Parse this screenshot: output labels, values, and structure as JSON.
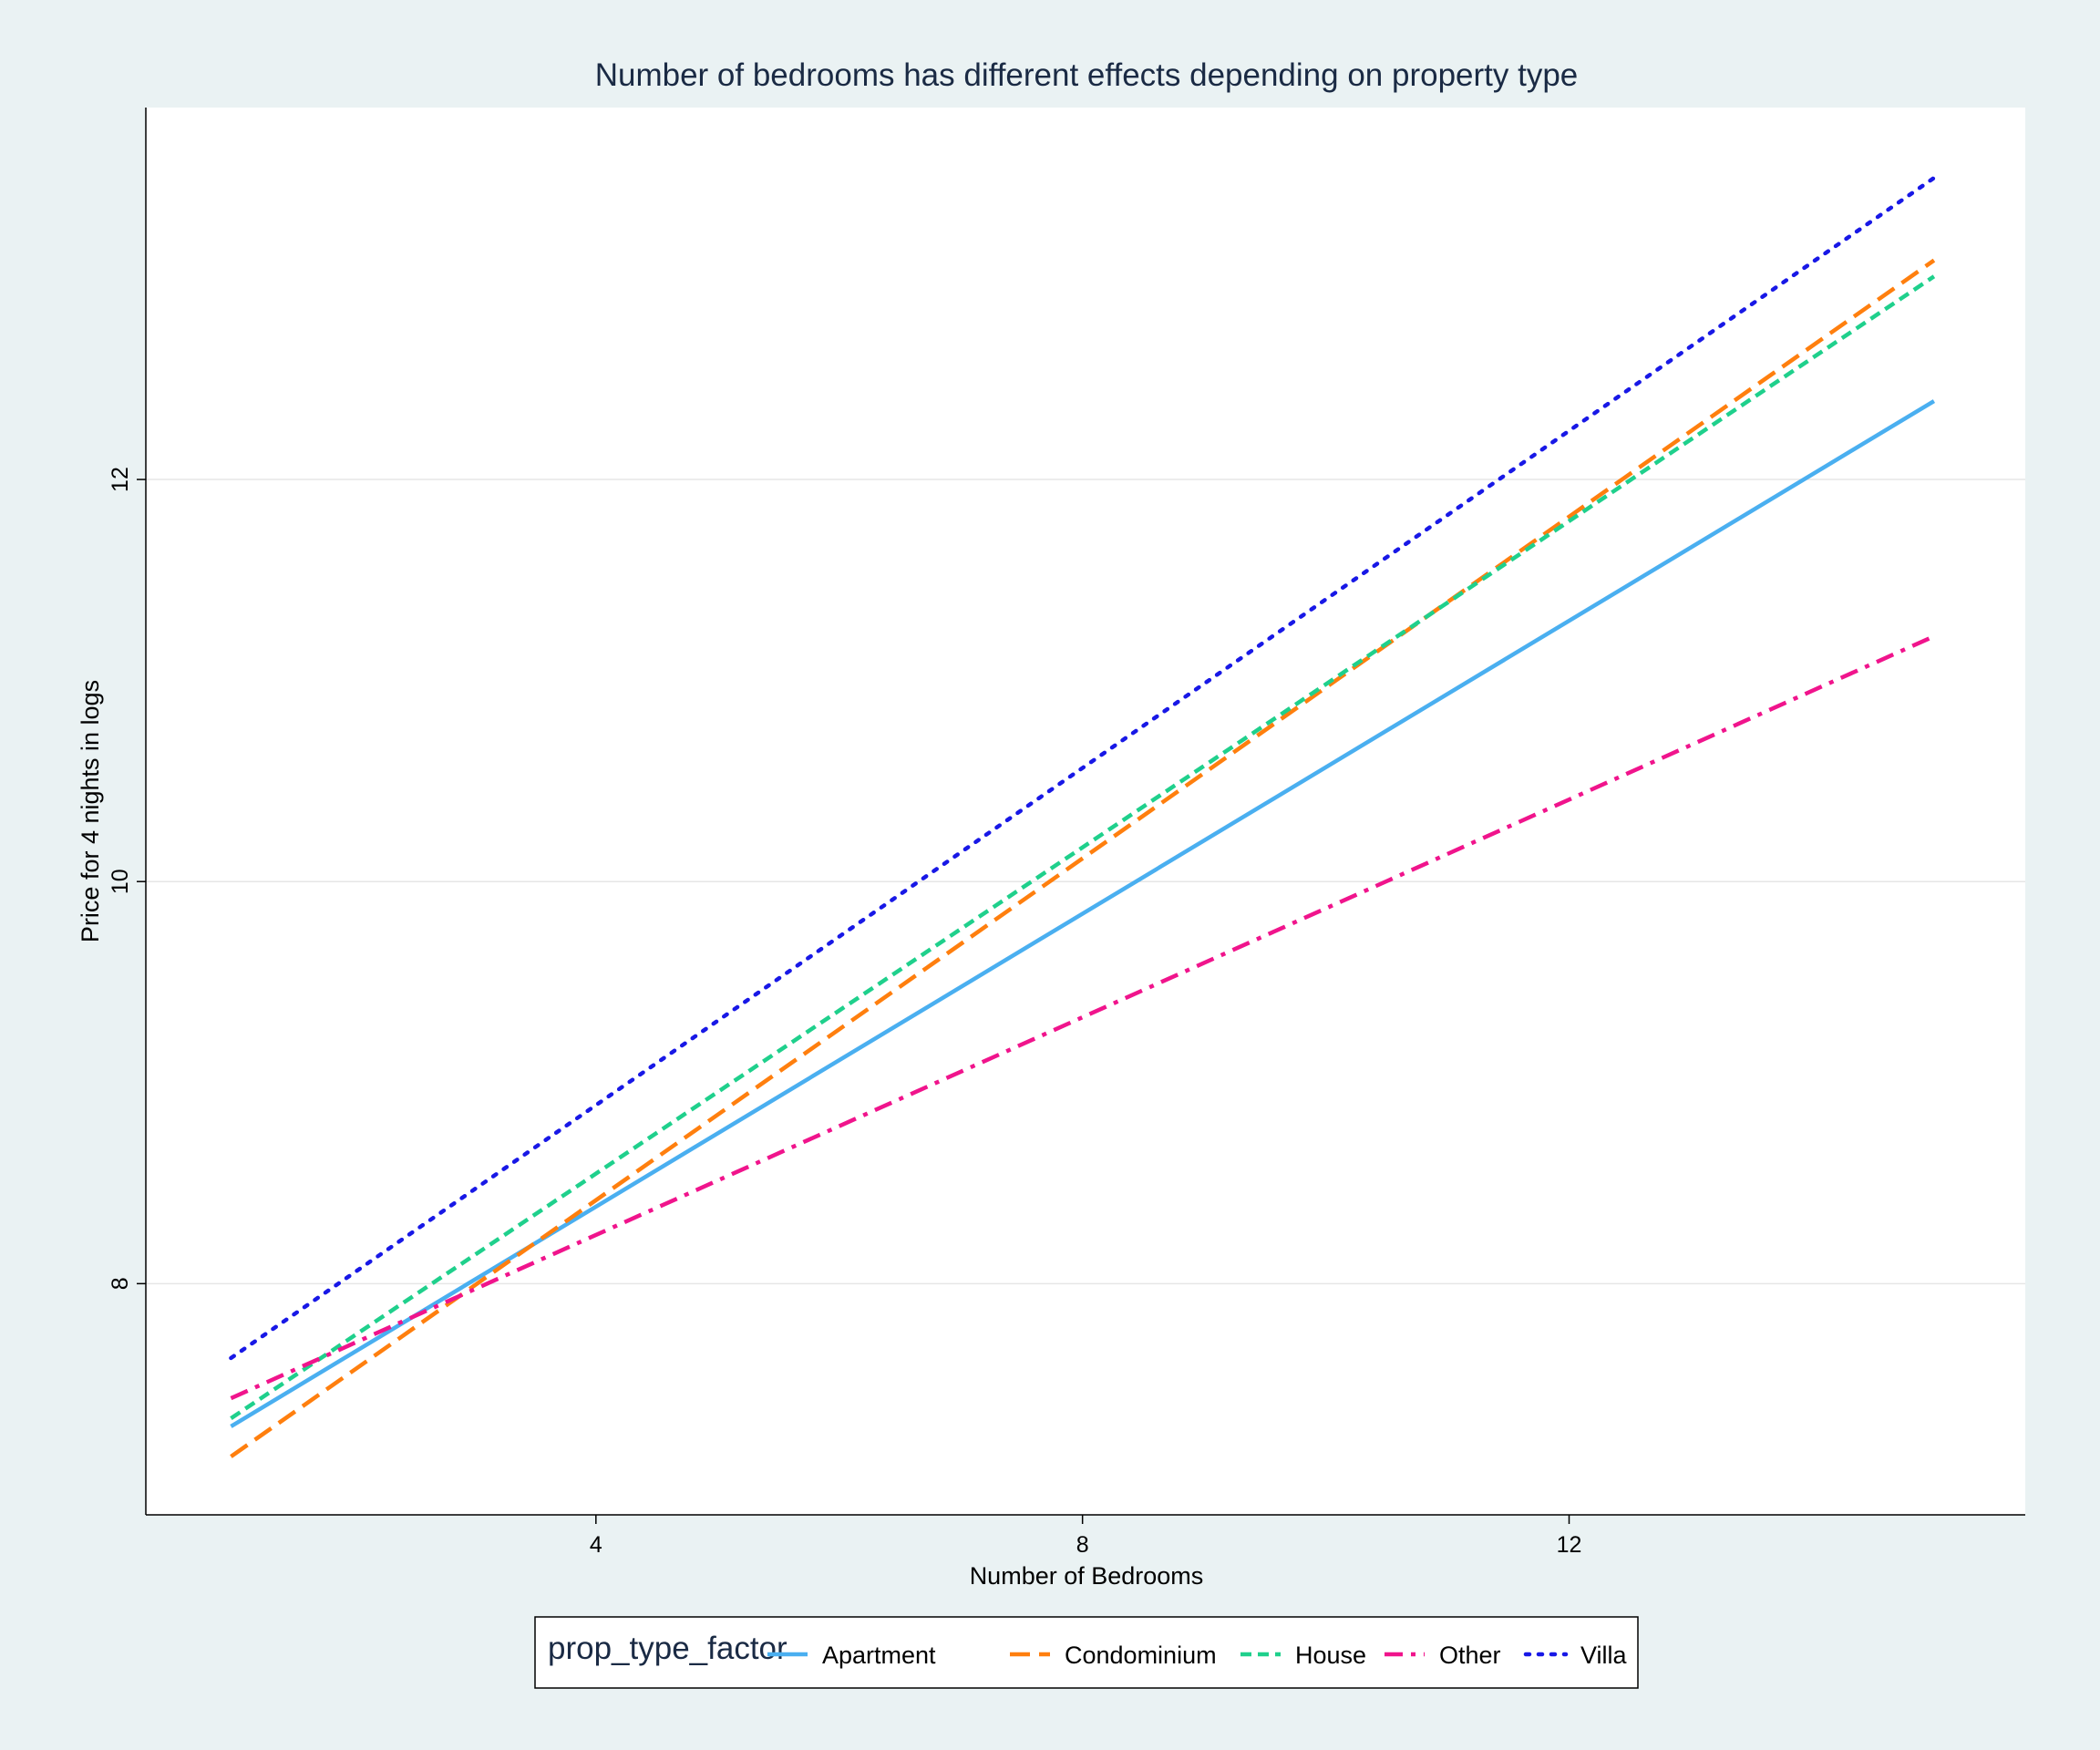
{
  "chart_data": {
    "type": "line",
    "title": "Number of bedrooms has different effects depending on property type",
    "xlabel": "Number of Bedrooms",
    "ylabel": "Price for 4 nights in logs",
    "xlim": [
      0.3,
      15.75
    ],
    "ylim": [
      6.85,
      13.85
    ],
    "xticks": [
      4,
      8,
      12
    ],
    "yticks": [
      8,
      10,
      12
    ],
    "grid": "horizontal",
    "legend": {
      "title": "prop_type_factor",
      "position": "bottom"
    },
    "series": [
      {
        "name": "Apartment",
        "color": "#4aaff0",
        "dash": "solid",
        "x": [
          1,
          15
        ],
        "y": [
          7.29,
          12.39
        ]
      },
      {
        "name": "Condominium",
        "color": "#ff7f0e",
        "dash": "dashed",
        "x": [
          1,
          15
        ],
        "y": [
          7.14,
          13.09
        ]
      },
      {
        "name": "House",
        "color": "#1fd08c",
        "dash": "shortdash",
        "x": [
          1,
          15
        ],
        "y": [
          7.33,
          13.01
        ]
      },
      {
        "name": "Other",
        "color": "#f0148c",
        "dash": "dashdot",
        "x": [
          1,
          15
        ],
        "y": [
          7.43,
          11.22
        ]
      },
      {
        "name": "Villa",
        "color": "#1818e6",
        "dash": "dotted",
        "x": [
          1,
          15
        ],
        "y": [
          7.63,
          13.5
        ]
      }
    ]
  }
}
